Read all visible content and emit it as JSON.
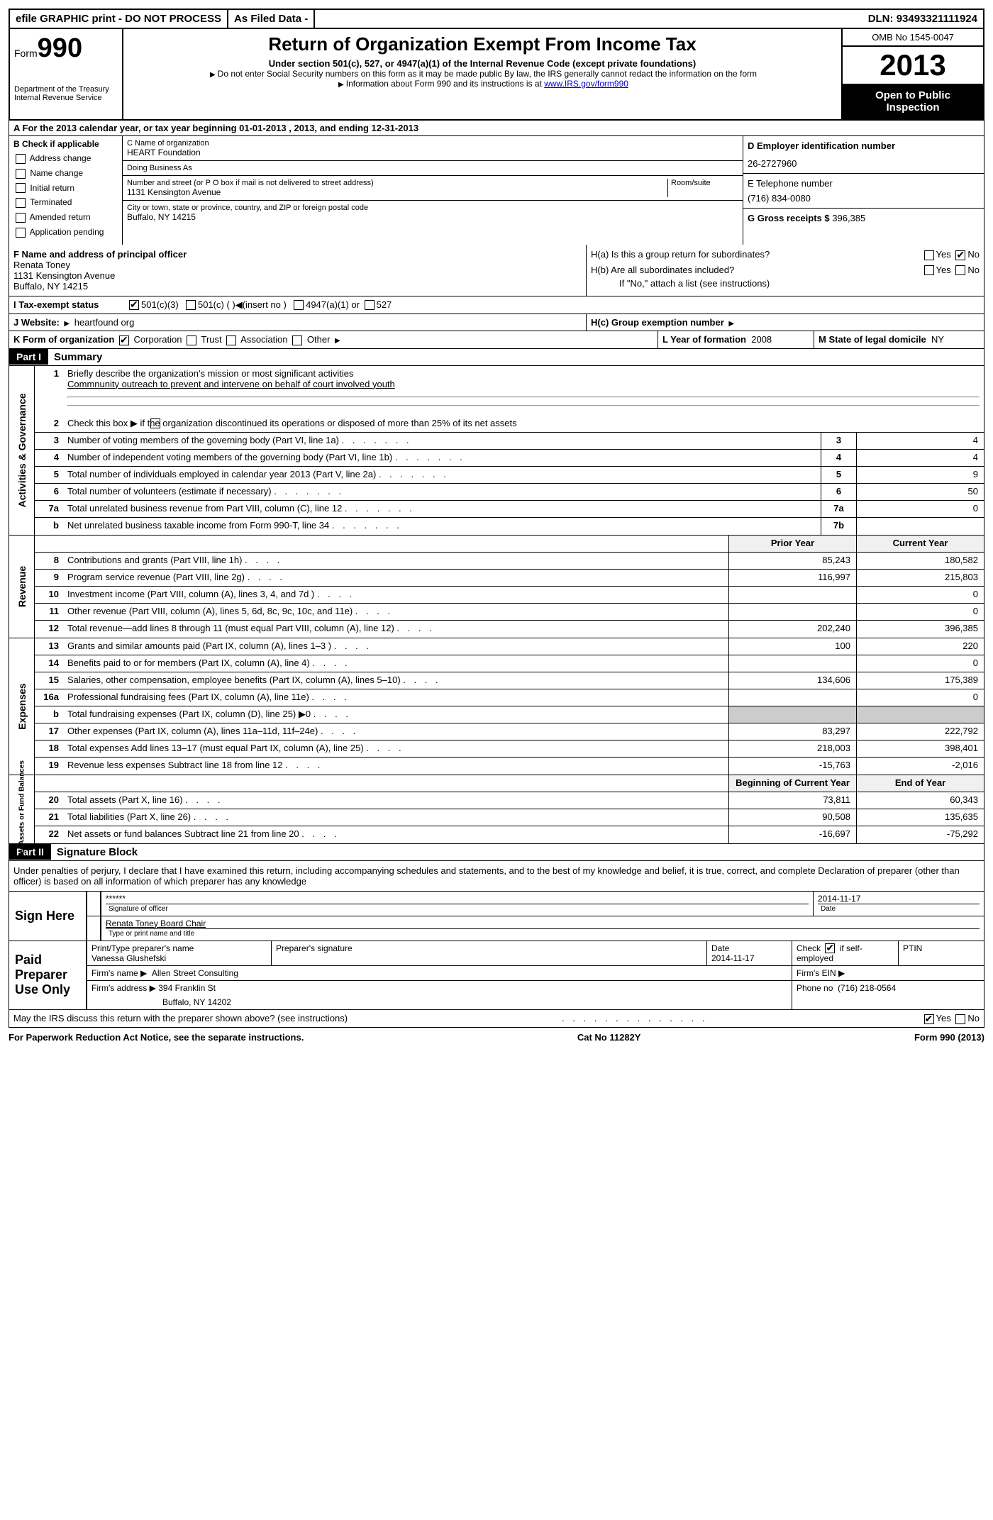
{
  "topbar": {
    "efile": "efile GRAPHIC print - DO NOT PROCESS",
    "asfiled": "As Filed Data -",
    "dln_label": "DLN:",
    "dln": "93493321111924"
  },
  "header": {
    "form_label": "Form",
    "form_num": "990",
    "dept1": "Department of the Treasury",
    "dept2": "Internal Revenue Service",
    "title": "Return of Organization Exempt From Income Tax",
    "subtitle": "Under section 501(c), 527, or 4947(a)(1) of the Internal Revenue Code (except private foundations)",
    "note1": "Do not enter Social Security numbers on this form as it may be made public  By law, the IRS generally cannot redact the information on the form",
    "note2": "Information about Form 990 and its instructions is at ",
    "link": "www.IRS.gov/form990",
    "omb": "OMB No  1545-0047",
    "year": "2013",
    "inspect": "Open to Public Inspection"
  },
  "row_a": "A  For the 2013 calendar year, or tax year beginning 01-01-2013    , 2013, and ending 12-31-2013",
  "col_b": {
    "title": "B  Check if applicable",
    "items": [
      "Address change",
      "Name change",
      "Initial return",
      "Terminated",
      "Amended return",
      "Application pending"
    ]
  },
  "col_c": {
    "name_lbl": "C Name of organization",
    "name": "HEART Foundation",
    "dba_lbl": "Doing Business As",
    "dba": "",
    "addr_lbl": "Number and street (or P O  box if mail is not delivered to street address)",
    "room_lbl": "Room/suite",
    "addr": "1131 Kensington Avenue",
    "city_lbl": "City or town, state or province, country, and ZIP or foreign postal code",
    "city": "Buffalo, NY  14215"
  },
  "col_d": {
    "d_lbl": "D Employer identification number",
    "ein": "26-2727960",
    "e_lbl": "E Telephone number",
    "phone": "(716) 834-0080",
    "g_lbl": "G Gross receipts $",
    "gross": "396,385"
  },
  "f": {
    "lbl": "F   Name and address of principal officer",
    "name": "Renata Toney",
    "addr1": "1131 Kensington Avenue",
    "addr2": "Buffalo, NY  14215"
  },
  "h": {
    "ha": "H(a)  Is this a group return for subordinates?",
    "hb": "H(b)  Are all subordinates included?",
    "hb_note": "If \"No,\" attach a list  (see instructions)",
    "hc": "H(c)   Group exemption number",
    "yes": "Yes",
    "no": "No"
  },
  "i": {
    "lbl": "I    Tax-exempt status",
    "o1": "501(c)(3)",
    "o2": "501(c) (   )",
    "o2b": "(insert no )",
    "o3": "4947(a)(1) or",
    "o4": "527"
  },
  "j": {
    "lbl": "J   Website:",
    "val": "heartfound org"
  },
  "k": {
    "lbl": "K Form of organization",
    "o1": "Corporation",
    "o2": "Trust",
    "o3": "Association",
    "o4": "Other",
    "l_lbl": "L Year of formation",
    "l_val": "2008",
    "m_lbl": "M State of legal domicile",
    "m_val": "NY"
  },
  "part1": {
    "num": "Part I",
    "title": "Summary"
  },
  "summary": {
    "q1": "Briefly describe the organization's mission or most significant activities",
    "q1_ans": "Commnunity outreach to prevent and intervene on behalf of court involved youth",
    "q2": "Check this box ▶     if the organization discontinued its operations or disposed of more than 25% of its net assets",
    "rows": [
      {
        "n": "3",
        "t": "Number of voting members of the governing body (Part VI, line 1a)",
        "b": "3",
        "v": "4"
      },
      {
        "n": "4",
        "t": "Number of independent voting members of the governing body (Part VI, line 1b)",
        "b": "4",
        "v": "4"
      },
      {
        "n": "5",
        "t": "Total number of individuals employed in calendar year 2013 (Part V, line 2a)",
        "b": "5",
        "v": "9"
      },
      {
        "n": "6",
        "t": "Total number of volunteers (estimate if necessary)",
        "b": "6",
        "v": "50"
      },
      {
        "n": "7a",
        "t": "Total unrelated business revenue from Part VIII, column (C), line 12",
        "b": "7a",
        "v": "0"
      },
      {
        "n": "b",
        "t": "Net unrelated business taxable income from Form 990-T, line 34",
        "b": "7b",
        "v": ""
      }
    ]
  },
  "revexp": {
    "hdr_prior": "Prior Year",
    "hdr_curr": "Current Year",
    "revenue": [
      {
        "n": "8",
        "t": "Contributions and grants (Part VIII, line 1h)",
        "p": "85,243",
        "c": "180,582"
      },
      {
        "n": "9",
        "t": "Program service revenue (Part VIII, line 2g)",
        "p": "116,997",
        "c": "215,803"
      },
      {
        "n": "10",
        "t": "Investment income (Part VIII, column (A), lines 3, 4, and 7d )",
        "p": "",
        "c": "0"
      },
      {
        "n": "11",
        "t": "Other revenue (Part VIII, column (A), lines 5, 6d, 8c, 9c, 10c, and 11e)",
        "p": "",
        "c": "0"
      },
      {
        "n": "12",
        "t": "Total revenue—add lines 8 through 11 (must equal Part VIII, column (A), line 12)",
        "p": "202,240",
        "c": "396,385"
      }
    ],
    "expenses": [
      {
        "n": "13",
        "t": "Grants and similar amounts paid (Part IX, column (A), lines 1–3 )",
        "p": "100",
        "c": "220"
      },
      {
        "n": "14",
        "t": "Benefits paid to or for members (Part IX, column (A), line 4)",
        "p": "",
        "c": "0"
      },
      {
        "n": "15",
        "t": "Salaries, other compensation, employee benefits (Part IX, column (A), lines 5–10)",
        "p": "134,606",
        "c": "175,389"
      },
      {
        "n": "16a",
        "t": "Professional fundraising fees (Part IX, column (A), line 11e)",
        "p": "",
        "c": "0"
      },
      {
        "n": "b",
        "t": "Total fundraising expenses (Part IX, column (D), line 25) ▶0",
        "p": "shade",
        "c": "shade"
      },
      {
        "n": "17",
        "t": "Other expenses (Part IX, column (A), lines 11a–11d, 11f–24e)",
        "p": "83,297",
        "c": "222,792"
      },
      {
        "n": "18",
        "t": "Total expenses  Add lines 13–17 (must equal Part IX, column (A), line 25)",
        "p": "218,003",
        "c": "398,401"
      },
      {
        "n": "19",
        "t": "Revenue less expenses  Subtract line 18 from line 12",
        "p": "-15,763",
        "c": "-2,016"
      }
    ],
    "hdr_begin": "Beginning of Current Year",
    "hdr_end": "End of Year",
    "netassets": [
      {
        "n": "20",
        "t": "Total assets (Part X, line 16)",
        "p": "73,811",
        "c": "60,343"
      },
      {
        "n": "21",
        "t": "Total liabilities (Part X, line 26)",
        "p": "90,508",
        "c": "135,635"
      },
      {
        "n": "22",
        "t": "Net assets or fund balances  Subtract line 21 from line 20",
        "p": "-16,697",
        "c": "-75,292"
      }
    ]
  },
  "sidebars": {
    "s1": "Activities & Governance",
    "s2": "Revenue",
    "s3": "Expenses",
    "s4": "Net Assets or Fund Balances"
  },
  "part2": {
    "num": "Part II",
    "title": "Signature Block"
  },
  "sig": {
    "decl": "Under penalties of perjury, I declare that I have examined this return, including accompanying schedules and statements, and to the best of my knowledge and belief, it is true, correct, and complete  Declaration of preparer (other than officer) is based on all information of which preparer has any knowledge",
    "sign_here": "Sign Here",
    "stars": "******",
    "sig_officer": "Signature of officer",
    "date1": "2014-11-17",
    "date_lbl": "Date",
    "officer_name": "Renata Toney Board Chair",
    "type_name": "Type or print name and title",
    "paid": "Paid Preparer Use Only",
    "prep_name_lbl": "Print/Type preparer's name",
    "prep_name": "Vanessa Glushefski",
    "prep_sig_lbl": "Preparer's signature",
    "date2": "2014-11-17",
    "check_self": "Check        if self-employed",
    "ptin": "PTIN",
    "firm_name_lbl": "Firm's name     ▶",
    "firm_name": "Allen Street Consulting",
    "firm_ein_lbl": "Firm's EIN ▶",
    "firm_addr_lbl": "Firm's address ▶",
    "firm_addr1": "394 Franklin St",
    "firm_addr2": "Buffalo, NY  14202",
    "phone_lbl": "Phone no",
    "phone": "(716) 218-0564",
    "discuss": "May the IRS discuss this return with the preparer shown above? (see instructions)"
  },
  "footer": {
    "left": "For Paperwork Reduction Act Notice, see the separate instructions.",
    "mid": "Cat  No  11282Y",
    "right": "Form 990 (2013)"
  }
}
